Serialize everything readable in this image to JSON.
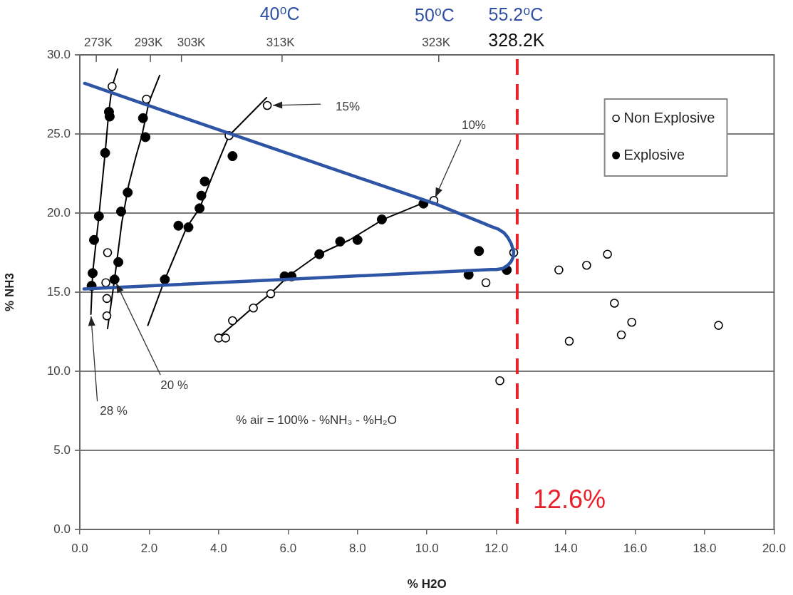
{
  "chart_data": {
    "type": "scatter",
    "xlabel": "% H2O",
    "ylabel": "% NH3",
    "xlim": [
      0,
      20
    ],
    "xticks": [
      {
        "value": 0,
        "label": "0.0"
      },
      {
        "value": 2,
        "label": "2.0"
      },
      {
        "value": 4,
        "label": "4.0"
      },
      {
        "value": 6,
        "label": "6.0"
      },
      {
        "value": 8,
        "label": "8.0"
      },
      {
        "value": 10,
        "label": "10.0"
      },
      {
        "value": 12,
        "label": "12.0"
      },
      {
        "value": 14,
        "label": "14.0"
      },
      {
        "value": 16,
        "label": "16.0"
      },
      {
        "value": 18,
        "label": "18.0"
      },
      {
        "value": 20,
        "label": "20.0"
      }
    ],
    "ylim": [
      0,
      30
    ],
    "yticks": [
      {
        "value": 0,
        "label": "0.0"
      },
      {
        "value": 5,
        "label": "5.0"
      },
      {
        "value": 10,
        "label": "10.0"
      },
      {
        "value": 15,
        "label": "15.0"
      },
      {
        "value": 20,
        "label": "20.0"
      },
      {
        "value": 25,
        "label": "25.0"
      },
      {
        "value": 30,
        "label": "30.0"
      }
    ],
    "grid": "y",
    "legend": "top right",
    "marker": "circle",
    "series": [
      {
        "name": "Non Explosive",
        "color": "#000000",
        "x": [
          0.93,
          0.8,
          0.75,
          0.78,
          0.78,
          1.92,
          5.4,
          4.3,
          4.0,
          4.2,
          4.4,
          5.0,
          5.5,
          10.2,
          11.7,
          12.5,
          13.8,
          14.6,
          15.2,
          15.4,
          15.9,
          15.6,
          14.1,
          18.4,
          12.1
        ],
        "values": [
          28.0,
          17.5,
          15.6,
          14.6,
          13.5,
          27.2,
          26.8,
          24.9,
          12.1,
          12.1,
          13.2,
          14.0,
          14.9,
          20.8,
          15.6,
          17.5,
          16.4,
          16.7,
          17.4,
          14.3,
          13.1,
          12.3,
          11.9,
          12.9,
          9.4
        ]
      },
      {
        "name": "Explosive",
        "color": "#000000",
        "x": [
          0.84,
          0.86,
          0.73,
          0.55,
          0.41,
          0.37,
          0.34,
          1.82,
          1.89,
          1.38,
          1.19,
          1.11,
          1.0,
          4.4,
          3.6,
          3.5,
          3.45,
          2.84,
          3.13,
          2.45,
          5.9,
          6.1,
          6.9,
          7.5,
          8.0,
          8.7,
          9.9,
          11.5,
          11.2,
          12.3
        ],
        "values": [
          26.4,
          26.1,
          23.8,
          19.8,
          18.3,
          16.2,
          15.4,
          26.0,
          24.8,
          21.3,
          20.1,
          16.9,
          15.8,
          23.6,
          22.0,
          21.1,
          20.3,
          19.2,
          19.1,
          15.8,
          16.0,
          16.0,
          17.4,
          18.2,
          18.3,
          19.6,
          20.6,
          17.6,
          16.1,
          16.4
        ]
      },
      {
        "type": "line",
        "color": "#000000",
        "marker": "none",
        "x": [
          0.32,
          0.37,
          0.55,
          0.73,
          0.83,
          0.93,
          1.09
        ],
        "values": [
          13.6,
          16.2,
          19.8,
          23.8,
          26.3,
          28.0,
          29.1
        ]
      },
      {
        "type": "line",
        "color": "#000000",
        "marker": "none",
        "x": [
          0.8,
          1.0,
          1.21,
          1.41,
          1.62,
          1.79,
          1.99,
          2.3
        ],
        "values": [
          12.7,
          15.8,
          19.4,
          21.8,
          23.6,
          24.9,
          27.0,
          28.7
        ]
      },
      {
        "type": "line",
        "color": "#000000",
        "marker": "none",
        "x": [
          1.96,
          2.45,
          3.08,
          3.45,
          3.83,
          4.3,
          5.38
        ],
        "values": [
          12.9,
          15.8,
          19.1,
          20.3,
          22.4,
          24.9,
          27.3
        ]
      },
      {
        "type": "line",
        "color": "#000000",
        "marker": "none",
        "x": [
          3.93,
          4.97,
          5.49,
          6.0,
          6.89,
          7.77,
          8.74,
          9.85,
          10.22
        ],
        "values": [
          12.0,
          14.0,
          14.9,
          16.0,
          17.4,
          18.3,
          19.6,
          20.6,
          20.8
        ]
      },
      {
        "type": "line",
        "color": "#2e55a5",
        "marker": "none",
        "x": [
          0.14,
          3.42,
          10.22,
          11.58,
          11.85,
          12.06,
          12.22,
          12.33,
          12.43,
          12.5,
          12.48,
          12.43,
          12.33,
          12.19,
          12.0,
          11.85,
          5.87,
          0.12
        ],
        "values": [
          28.2,
          25.7,
          20.6,
          19.4,
          19.15,
          18.98,
          18.75,
          18.46,
          18.05,
          17.55,
          17.2,
          16.95,
          16.7,
          16.5,
          16.43,
          16.43,
          15.8,
          15.2
        ]
      }
    ],
    "ref_lines": [
      {
        "axis": "x",
        "value": 12.6,
        "label": "12.6%",
        "color": "#e8202a",
        "line_style": "dashed"
      }
    ],
    "annotations": [
      "40⁰C",
      "50⁰C",
      "55.2⁰C",
      "273K",
      "293K",
      "303K",
      "313K",
      "323K",
      "328.2K",
      {
        "text": "15%",
        "x": 5.4,
        "y": 26.8
      },
      {
        "text": "10%",
        "x": 10.2,
        "y": 20.8
      },
      {
        "text": "20 %",
        "x": 1.0,
        "y": 15.8
      },
      {
        "text": "28 %",
        "x": 0.32,
        "y": 13.6
      },
      "% air = 100% - %NH₃ - %H₂O"
    ]
  }
}
